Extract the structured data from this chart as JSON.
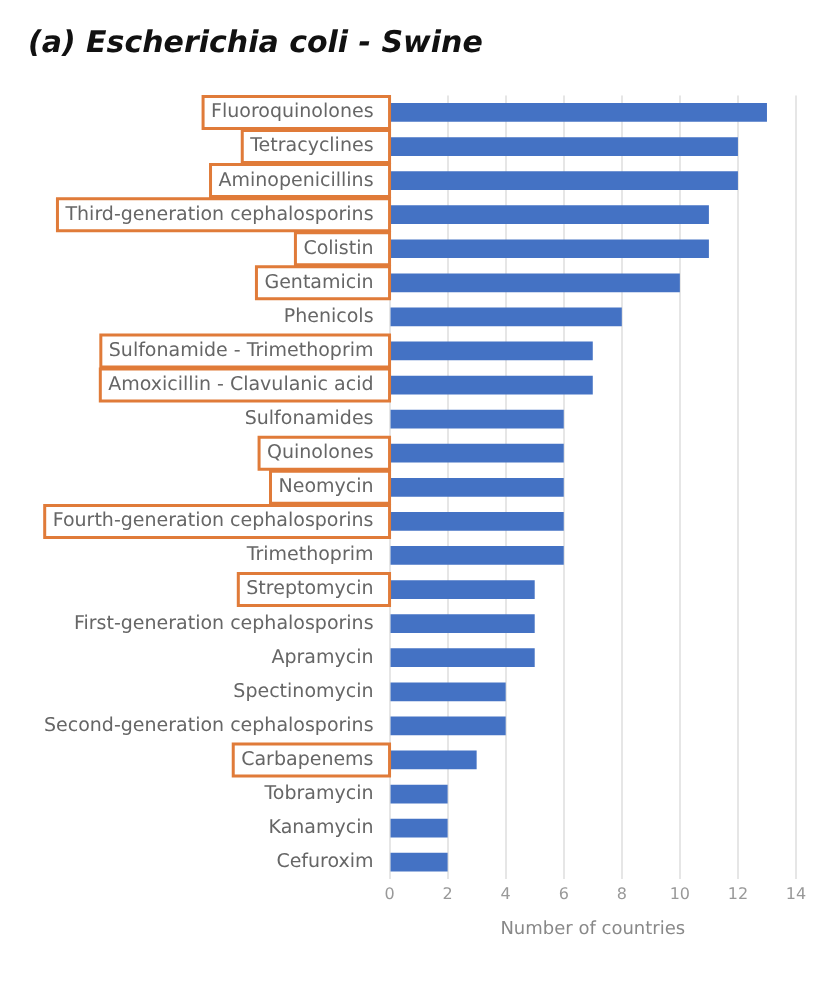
{
  "chart_data": {
    "type": "bar",
    "orientation": "horizontal",
    "title": "(a) Escherichia coli - Swine",
    "xlabel": "Number of countries",
    "categories": [
      "Fluoroquinolones",
      "Tetracyclines",
      "Aminopenicillins",
      "Third-generation cephalosporins",
      "Colistin",
      "Gentamicin",
      "Phenicols",
      "Sulfonamide - Trimethoprim",
      "Amoxicillin - Clavulanic acid",
      "Sulfonamides",
      "Quinolones",
      "Neomycin",
      "Fourth-generation cephalosporins",
      "Trimethoprim",
      "Streptomycin",
      "First-generation cephalosporins",
      "Apramycin",
      "Spectinomycin",
      "Second-generation cephalosporins",
      "Carbapenems",
      "Tobramycin",
      "Kanamycin",
      "Cefuroxim"
    ],
    "values": [
      13,
      12,
      12,
      11,
      11,
      10,
      8,
      7,
      7,
      6,
      6,
      6,
      6,
      6,
      5,
      5,
      5,
      4,
      4,
      3,
      2,
      2,
      2
    ],
    "color": "#4472c4",
    "xlim": [
      0,
      14
    ],
    "xticks": [
      0,
      2,
      4,
      6,
      8,
      10,
      12,
      14
    ],
    "grid": "x"
  }
}
